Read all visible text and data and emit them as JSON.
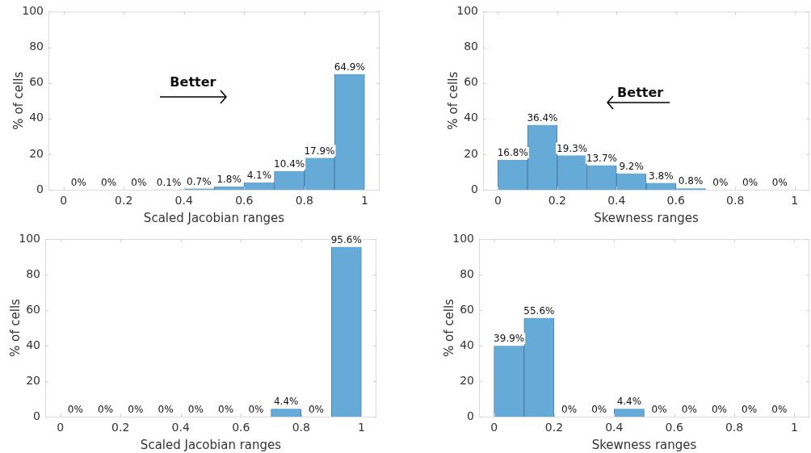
{
  "chart_data": [
    {
      "type": "histogram",
      "bins": [
        0,
        0.1,
        0.2,
        0.3,
        0.4,
        0.5,
        0.6,
        0.7,
        0.8,
        0.9,
        1
      ],
      "values": [
        0,
        0,
        0,
        0.1,
        0.7,
        1.8,
        4.1,
        10.4,
        17.9,
        64.9
      ],
      "value_labels": [
        "0%",
        "0%",
        "0%",
        "0.1%",
        "0.7%",
        "1.8%",
        "4.1%",
        "10.4%",
        "17.9%",
        "64.9%"
      ],
      "color": "#66aad7",
      "xlabel": "Scaled Jacobian ranges",
      "ylabel": "% of cells",
      "xlim": [
        -0.05,
        1.05
      ],
      "xticks": [
        0,
        0.2,
        0.4,
        0.6,
        0.8,
        1
      ],
      "ylim": [
        0,
        100
      ],
      "yticks": [
        0,
        20,
        40,
        60,
        80,
        100
      ],
      "annotations": [
        "Better"
      ]
    },
    {
      "type": "histogram",
      "bins": [
        0,
        0.1,
        0.2,
        0.3,
        0.4,
        0.5,
        0.6,
        0.7,
        0.8,
        0.9,
        1
      ],
      "values": [
        16.8,
        36.4,
        19.3,
        13.7,
        9.2,
        3.8,
        0.8,
        0,
        0,
        0
      ],
      "value_labels": [
        "16.8%",
        "36.4%",
        "19.3%",
        "13.7%",
        "9.2%",
        "3.8%",
        "0.8%",
        "0%",
        "0%",
        "0%"
      ],
      "color": "#66aad7",
      "xlabel": "Skewness ranges",
      "ylabel": "% of cells",
      "xlim": [
        -0.05,
        1.05
      ],
      "xticks": [
        0,
        0.2,
        0.4,
        0.6,
        0.8,
        1
      ],
      "ylim": [
        0,
        100
      ],
      "yticks": [
        0,
        20,
        40,
        60,
        80,
        100
      ],
      "annotations": [
        "Better"
      ]
    },
    {
      "type": "histogram",
      "bins": [
        0,
        0.1,
        0.2,
        0.3,
        0.4,
        0.5,
        0.6,
        0.7,
        0.8,
        0.9,
        1
      ],
      "values": [
        0,
        0,
        0,
        0,
        0,
        0,
        0,
        4.4,
        0,
        95.6
      ],
      "value_labels": [
        "0%",
        "0%",
        "0%",
        "0%",
        "0%",
        "0%",
        "0%",
        "4.4%",
        "0%",
        "95.6%"
      ],
      "color": "#66aad7",
      "xlabel": "Scaled Jacobian ranges",
      "ylabel": "% of cells",
      "xlim": [
        -0.05,
        1.05
      ],
      "xticks": [
        0,
        0.2,
        0.4,
        0.6,
        0.8,
        1
      ],
      "ylim": [
        0,
        100
      ],
      "yticks": [
        0,
        20,
        40,
        60,
        80,
        100
      ]
    },
    {
      "type": "histogram",
      "bins": [
        0,
        0.1,
        0.2,
        0.3,
        0.4,
        0.5,
        0.6,
        0.7,
        0.8,
        0.9,
        1
      ],
      "values": [
        39.9,
        55.6,
        0,
        0,
        4.4,
        0,
        0,
        0,
        0,
        0
      ],
      "value_labels": [
        "39.9%",
        "55.6%",
        "0%",
        "0%",
        "4.4%",
        "0%",
        "0%",
        "0%",
        "0%",
        "0%"
      ],
      "color": "#66aad7",
      "xlabel": "Skewness ranges",
      "ylabel": "% of cells",
      "xlim": [
        -0.05,
        1.05
      ],
      "xticks": [
        0,
        0.2,
        0.4,
        0.6,
        0.8,
        1
      ],
      "ylim": [
        0,
        100
      ],
      "yticks": [
        0,
        20,
        40,
        60,
        80,
        100
      ]
    }
  ]
}
